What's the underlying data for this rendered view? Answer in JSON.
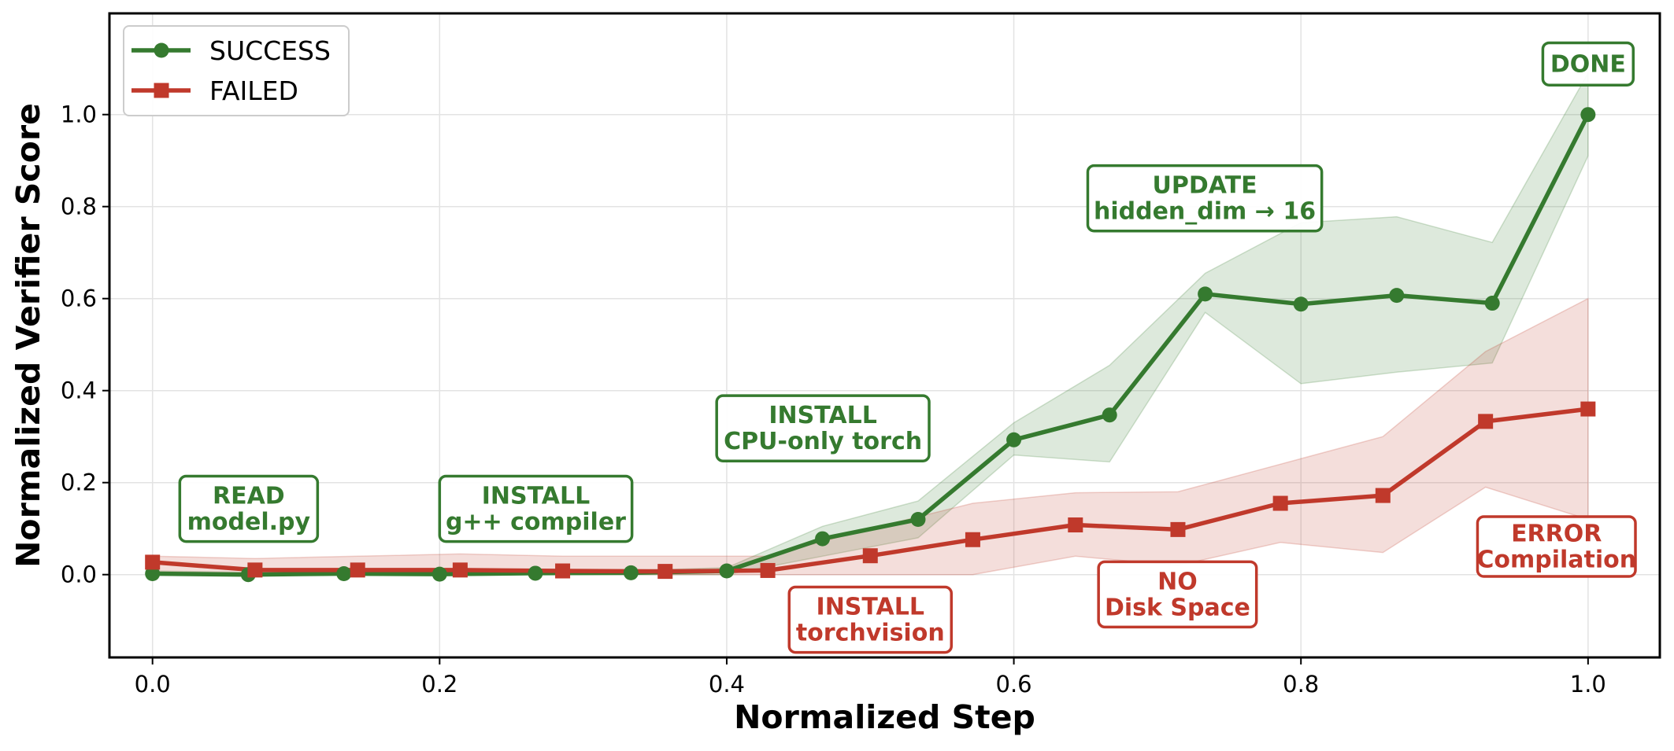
{
  "chart_data": {
    "type": "line",
    "title": "",
    "xlabel": "Normalized Step",
    "ylabel": "Normalized Verifier Score",
    "xlim": [
      -0.03,
      1.05
    ],
    "ylim": [
      -0.18,
      1.22
    ],
    "xticks": [
      "0.0",
      "0.2",
      "0.4",
      "0.6",
      "0.8",
      "1.0"
    ],
    "yticks": [
      "0.0",
      "0.2",
      "0.4",
      "0.6",
      "0.8",
      "1.0"
    ],
    "grid": true,
    "legend_position": "top-left",
    "series": [
      {
        "name": "SUCCESS",
        "color": "#357a2f",
        "marker": "circle",
        "x": [
          0.0,
          0.0667,
          0.1333,
          0.2,
          0.2667,
          0.3333,
          0.4,
          0.4667,
          0.5333,
          0.6,
          0.6667,
          0.7333,
          0.8,
          0.8667,
          0.9333,
          1.0
        ],
        "y": [
          0.002,
          0.0,
          0.002,
          0.001,
          0.003,
          0.004,
          0.008,
          0.078,
          0.12,
          0.293,
          0.347,
          0.61,
          0.588,
          0.607,
          0.59,
          1.0
        ],
        "lower": [
          0.0,
          0.0,
          0.0,
          0.0,
          0.0,
          0.0,
          0.0,
          0.04,
          0.08,
          0.26,
          0.245,
          0.57,
          0.415,
          0.44,
          0.46,
          0.91
        ],
        "upper": [
          0.008,
          0.005,
          0.006,
          0.005,
          0.008,
          0.009,
          0.015,
          0.105,
          0.16,
          0.33,
          0.455,
          0.655,
          0.765,
          0.778,
          0.722,
          1.09
        ]
      },
      {
        "name": "FAILED",
        "color": "#c0392b",
        "marker": "square",
        "x": [
          0.0,
          0.0714,
          0.1429,
          0.2143,
          0.2857,
          0.3571,
          0.4286,
          0.5,
          0.5714,
          0.6429,
          0.7143,
          0.7857,
          0.8571,
          0.9286,
          1.0
        ],
        "y": [
          0.027,
          0.01,
          0.01,
          0.01,
          0.008,
          0.007,
          0.009,
          0.041,
          0.076,
          0.108,
          0.098,
          0.155,
          0.172,
          0.333,
          0.36
        ],
        "lower": [
          0.0,
          0.0,
          0.0,
          0.0,
          0.0,
          0.0,
          0.0,
          0.0,
          0.0,
          0.04,
          0.02,
          0.07,
          0.048,
          0.19,
          0.12
        ],
        "upper": [
          0.04,
          0.035,
          0.04,
          0.045,
          0.04,
          0.04,
          0.04,
          0.1,
          0.155,
          0.178,
          0.18,
          0.24,
          0.3,
          0.485,
          0.6
        ]
      }
    ],
    "annotations": [
      {
        "id": "read-model",
        "lines": [
          "READ",
          "model.py"
        ],
        "x": 0.067,
        "y": 0.143,
        "color": "#357a2f",
        "w": 0.096,
        "h": 0.142
      },
      {
        "id": "install-gpp",
        "lines": [
          "INSTALL",
          "g++ compiler"
        ],
        "x": 0.267,
        "y": 0.143,
        "color": "#357a2f",
        "w": 0.134,
        "h": 0.142
      },
      {
        "id": "install-cpu-torch",
        "lines": [
          "INSTALL",
          "CPU-only torch"
        ],
        "x": 0.467,
        "y": 0.318,
        "color": "#357a2f",
        "w": 0.148,
        "h": 0.142
      },
      {
        "id": "update-hidden-dim",
        "lines": [
          "UPDATE",
          "hidden_dim → 16"
        ],
        "x": 0.733,
        "y": 0.818,
        "color": "#357a2f",
        "w": 0.163,
        "h": 0.142
      },
      {
        "id": "done",
        "lines": [
          "DONE"
        ],
        "x": 1.0,
        "y": 1.11,
        "color": "#357a2f",
        "w": 0.063,
        "h": 0.092
      },
      {
        "id": "install-torchvision",
        "lines": [
          "INSTALL",
          "torchvision"
        ],
        "x": 0.5,
        "y": -0.098,
        "color": "#c0392b",
        "w": 0.113,
        "h": 0.142
      },
      {
        "id": "no-disk-space",
        "lines": [
          "NO",
          "Disk Space"
        ],
        "x": 0.714,
        "y": -0.043,
        "color": "#c0392b",
        "w": 0.11,
        "h": 0.142
      },
      {
        "id": "error-compilation",
        "lines": [
          "ERROR",
          "Compilation"
        ],
        "x": 0.978,
        "y": 0.061,
        "color": "#c0392b",
        "w": 0.11,
        "h": 0.13
      }
    ]
  }
}
